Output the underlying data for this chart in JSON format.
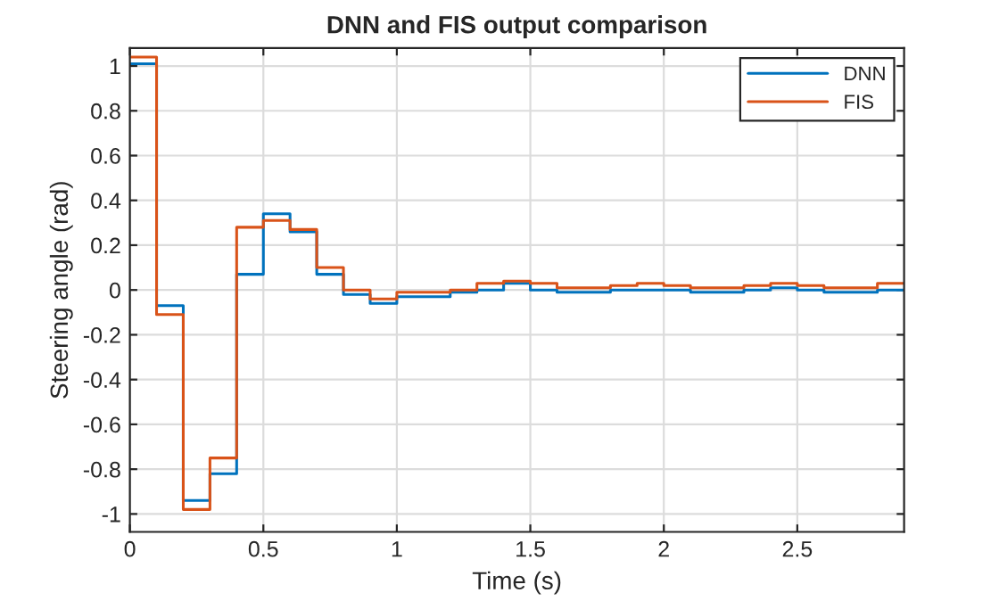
{
  "chart_data": {
    "type": "step",
    "title": "DNN and FIS output comparison",
    "xlabel": "Time (s)",
    "ylabel": "Steering angle (rad)",
    "x": [
      0,
      0.1,
      0.2,
      0.3,
      0.4,
      0.5,
      0.6,
      0.7,
      0.8,
      0.9,
      1.0,
      1.1,
      1.2,
      1.3,
      1.4,
      1.5,
      1.6,
      1.7,
      1.8,
      1.9,
      2.0,
      2.1,
      2.2,
      2.3,
      2.4,
      2.5,
      2.6,
      2.7,
      2.8,
      2.9
    ],
    "series": [
      {
        "name": "DNN",
        "color": "#0072bd",
        "values": [
          1.01,
          -0.07,
          -0.94,
          -0.82,
          0.07,
          0.34,
          0.26,
          0.07,
          -0.02,
          -0.06,
          -0.03,
          -0.03,
          -0.01,
          0.0,
          0.03,
          0.0,
          -0.01,
          -0.01,
          0.0,
          0.0,
          0.0,
          -0.01,
          -0.01,
          0.0,
          0.01,
          0.0,
          -0.01,
          -0.01,
          0.0,
          0.0
        ]
      },
      {
        "name": "FIS",
        "color": "#d95319",
        "values": [
          1.04,
          -0.11,
          -0.98,
          -0.75,
          0.28,
          0.31,
          0.27,
          0.1,
          0.0,
          -0.04,
          -0.01,
          -0.01,
          0.0,
          0.03,
          0.04,
          0.03,
          0.01,
          0.01,
          0.02,
          0.03,
          0.02,
          0.01,
          0.01,
          0.02,
          0.03,
          0.02,
          0.01,
          0.01,
          0.03,
          0.03
        ]
      }
    ],
    "xlim": [
      0,
      2.9
    ],
    "xticks": [
      0,
      0.5,
      1,
      1.5,
      2,
      2.5
    ],
    "ylim": [
      -1.08,
      1.08
    ],
    "yticks": [
      {
        "value": -1,
        "label": "-1"
      },
      {
        "value": -0.8,
        "label": "-0.8"
      },
      {
        "value": -0.6,
        "label": "-0.6"
      },
      {
        "value": -0.4,
        "label": "-0.4"
      },
      {
        "value": -0.2,
        "label": "-0.2"
      },
      0,
      0.2,
      0.4,
      0.6,
      0.8,
      1
    ],
    "grid": true,
    "legend": "top right"
  }
}
